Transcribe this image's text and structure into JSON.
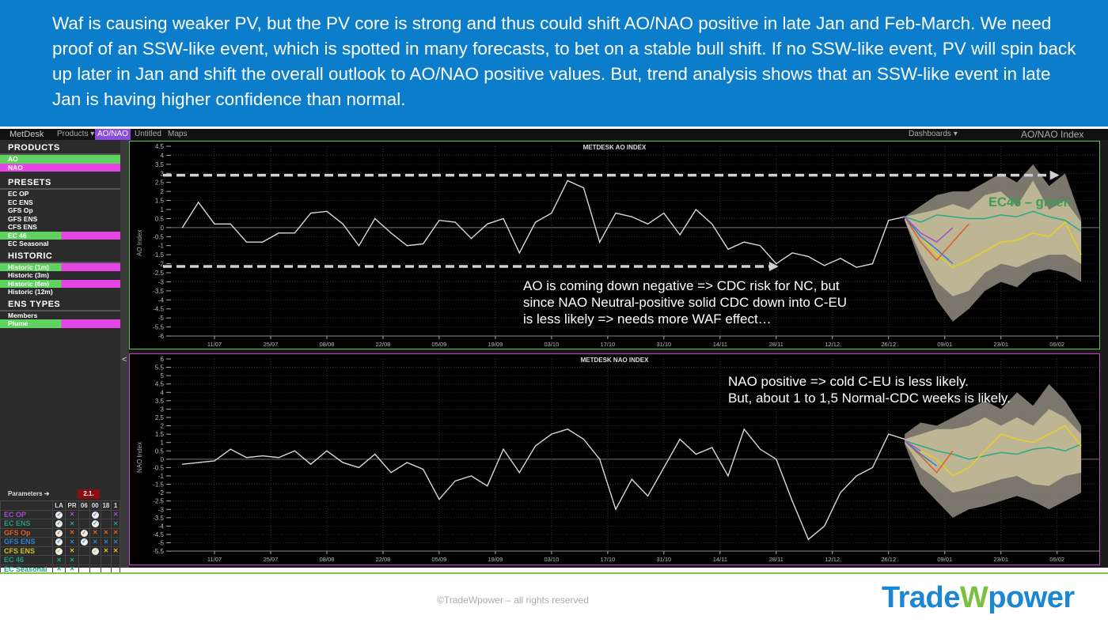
{
  "banner": {
    "text": "Waf is causing weaker PV, but the PV core is strong and thus could shift AO/NAO positive in late Jan and Feb-March. We need proof of an SSW-like event, which is spotted in many forecasts, to bet on a stable bull shift. If no SSW-like event, PV will spin back up later in Jan and shift the overall outlook to AO/NAO positive values. But, trend analysis shows that an SSW-like event in late Jan is having higher confidence than normal."
  },
  "toolbar": {
    "brand": "MetDesk",
    "products": "Products ▾",
    "active_tab": "AO/NAO",
    "untitled": "Untitled",
    "maps": "Maps",
    "dashboards": "Dashboards ▾",
    "index_title": "AO/NAO Index"
  },
  "sidebar": {
    "products_title": "PRODUCTS",
    "products": [
      {
        "label": "AO",
        "color": "#5fd35f"
      },
      {
        "label": "NAO",
        "color": "#e645e6"
      }
    ],
    "presets_title": "PRESETS",
    "presets": [
      {
        "label": "EC OP",
        "selected": false
      },
      {
        "label": "EC ENS",
        "selected": false
      },
      {
        "label": "GFS Op",
        "selected": false
      },
      {
        "label": "GFS ENS",
        "selected": false
      },
      {
        "label": "CFS ENS",
        "selected": false
      },
      {
        "label": "EC 46",
        "selected": true
      },
      {
        "label": "EC Seasonal",
        "selected": false
      }
    ],
    "historic_title": "HISTORIC",
    "historic": [
      {
        "label": "Historic (1m)",
        "selected": true
      },
      {
        "label": "Historic (3m)",
        "selected": false
      },
      {
        "label": "Historic (6m)",
        "selected": true
      },
      {
        "label": "Historic (12m)",
        "selected": false
      }
    ],
    "ens_title": "ENS TYPES",
    "ens_types": [
      {
        "label": "Members",
        "selected": false
      },
      {
        "label": "Plume",
        "selected": true
      }
    ],
    "collapse": "<"
  },
  "parameters": {
    "label": "Parameters ➔",
    "run": "2.1.",
    "columns": [
      "LA",
      "PR",
      "06",
      "00",
      "18",
      "1"
    ],
    "rows": [
      {
        "name": "EC OP",
        "color": "#a050d0",
        "marks": [
          "✓",
          "✕",
          "",
          "✓",
          "",
          "✕"
        ]
      },
      {
        "name": "EC ENS",
        "color": "#20a080",
        "marks": [
          "✓",
          "✕",
          "",
          "✓",
          "",
          "✕"
        ]
      },
      {
        "name": "GFS Op",
        "color": "#e06020",
        "marks": [
          "✓",
          "✕",
          "✓",
          "✕",
          "✕",
          "✕"
        ]
      },
      {
        "name": "GFS ENS",
        "color": "#3080d0",
        "marks": [
          "✓",
          "✕",
          "✓",
          "✕",
          "✕",
          "✕"
        ]
      },
      {
        "name": "CFS ENS",
        "color": "#d0c020",
        "marks": [
          "✓",
          "✕",
          "",
          "✓",
          "✕",
          "✕"
        ]
      },
      {
        "name": "EC 46",
        "color": "#20a080",
        "marks": [
          "✕",
          "✕",
          "",
          "",
          "",
          ""
        ]
      },
      {
        "name": "EC Seasonal",
        "color": "#20a080",
        "marks": [
          "✕",
          "✕",
          "",
          "",
          "",
          ""
        ]
      }
    ]
  },
  "chart_data": [
    {
      "type": "line",
      "title": "METDESK AO INDEX",
      "ylabel": "AO Index",
      "ylim": [
        -6,
        4.5
      ],
      "ytick_step": 0.5,
      "xticks": [
        "11/07",
        "25/07",
        "08/08",
        "22/08",
        "05/09",
        "19/09",
        "03/10",
        "17/10",
        "31/10",
        "14/11",
        "28/11",
        "12/12",
        "26/12",
        "09/01",
        "23/01",
        "06/02"
      ],
      "grid": true,
      "observed": {
        "x": [
          "03/07",
          "07/07",
          "11/07",
          "15/07",
          "19/07",
          "23/07",
          "27/07",
          "31/07",
          "04/08",
          "08/08",
          "12/08",
          "16/08",
          "20/08",
          "24/08",
          "28/08",
          "01/09",
          "05/09",
          "09/09",
          "13/09",
          "17/09",
          "21/09",
          "25/09",
          "29/09",
          "03/10",
          "07/10",
          "11/10",
          "15/10",
          "19/10",
          "23/10",
          "27/10",
          "31/10",
          "04/11",
          "08/11",
          "12/11",
          "16/11",
          "20/11",
          "24/11",
          "28/11",
          "02/12",
          "06/12",
          "10/12",
          "14/12",
          "18/12",
          "22/12",
          "26/12",
          "30/12"
        ],
        "y": [
          0,
          1.4,
          0.2,
          0.2,
          -0.8,
          -0.8,
          -0.3,
          -0.3,
          0.8,
          0.9,
          0.2,
          -1.0,
          0.5,
          -0.3,
          -1.0,
          -0.9,
          0.4,
          0.3,
          -0.6,
          0.2,
          0.5,
          -1.4,
          0.3,
          0.8,
          2.6,
          2.2,
          -0.8,
          0.8,
          0.6,
          0.2,
          0.8,
          -0.4,
          1.0,
          0.2,
          -1.2,
          -0.8,
          -1.0,
          -2.0,
          -1.4,
          -1.6,
          -2.1,
          -1.7,
          -2.2,
          -2.0,
          0.4,
          0.6
        ]
      },
      "forecast_x": [
        "30/12",
        "03/01",
        "07/01",
        "11/01",
        "15/01",
        "19/01",
        "23/01",
        "27/01",
        "31/01",
        "04/02",
        "08/02",
        "12/02"
      ],
      "bands": [
        {
          "color": "#8a8478",
          "upper": [
            0.6,
            1.2,
            1.8,
            2.0,
            2.0,
            2.5,
            3.0,
            2.5,
            3.5,
            2.3,
            3.0,
            0.5
          ],
          "lower": [
            0.4,
            -2.0,
            -4.0,
            -5.2,
            -4.5,
            -3.5,
            -3.0,
            -3.3,
            -2.5,
            -2.3,
            -2.5,
            -3.0
          ]
        },
        {
          "color": "#c9c09a",
          "upper": [
            0.6,
            0.8,
            1.0,
            1.3,
            1.0,
            1.8,
            2.0,
            1.2,
            2.6,
            1.0,
            1.5,
            0.3
          ],
          "lower": [
            0.4,
            -1.5,
            -3.0,
            -3.8,
            -3.5,
            -2.5,
            -2.0,
            -2.2,
            -1.8,
            -1.5,
            -1.5,
            -2.0
          ]
        }
      ],
      "series": [
        {
          "name": "EC46",
          "color": "#2aa88a",
          "y": [
            0.6,
            0.3,
            0.7,
            0.6,
            0.5,
            0.5,
            0.7,
            0.6,
            0.9,
            0.6,
            0.4,
            -0.2
          ]
        },
        {
          "color": "#e6d020",
          "y": [
            0.6,
            -0.5,
            -1.5,
            -2.2,
            -1.8,
            -1.3,
            -0.8,
            -0.7,
            -0.3,
            -0.5,
            0.3,
            -1.5
          ]
        },
        {
          "color": "#e06020",
          "y": [
            0.6,
            -0.8,
            -1.8,
            -0.8,
            0.2
          ]
        },
        {
          "color": "#3080d0",
          "y": [
            0.6,
            -0.5,
            -1.2,
            -2.0
          ]
        },
        {
          "color": "#a050d0",
          "y": [
            0.6,
            -0.3,
            -0.8,
            0.0
          ]
        }
      ],
      "dashed_arrows": [
        {
          "y": 2.9,
          "to": "06/02"
        },
        {
          "y": -2.15,
          "to": "28/11"
        }
      ],
      "annotations": [
        "AO is coming down negative => CDC risk for NC, but",
        "since NAO Neutral-positive solid CDC down into C-EU",
        "is less likely => needs more WAF effect…"
      ],
      "series_label": "EC46 – green"
    },
    {
      "type": "line",
      "title": "METDESK NAO INDEX",
      "ylabel": "NAO Index",
      "ylim": [
        -5.5,
        6
      ],
      "ytick_step": 0.5,
      "xticks": [
        "11/07",
        "25/07",
        "08/08",
        "22/08",
        "05/09",
        "19/09",
        "03/10",
        "17/10",
        "31/10",
        "14/11",
        "28/11",
        "12/12",
        "26/12",
        "09/01",
        "23/01",
        "06/02"
      ],
      "grid": true,
      "observed": {
        "x": [
          "03/07",
          "07/07",
          "11/07",
          "15/07",
          "19/07",
          "23/07",
          "27/07",
          "31/07",
          "04/08",
          "08/08",
          "12/08",
          "16/08",
          "20/08",
          "24/08",
          "28/08",
          "01/09",
          "05/09",
          "09/09",
          "13/09",
          "17/09",
          "21/09",
          "25/09",
          "29/09",
          "03/10",
          "07/10",
          "11/10",
          "15/10",
          "19/10",
          "23/10",
          "27/10",
          "31/10",
          "04/11",
          "08/11",
          "12/11",
          "16/11",
          "20/11",
          "24/11",
          "28/11",
          "02/12",
          "06/12",
          "10/12",
          "14/12",
          "18/12",
          "22/12",
          "26/12",
          "30/12"
        ],
        "y": [
          -0.3,
          -0.2,
          -0.1,
          0.6,
          0.1,
          0.2,
          0.1,
          0.5,
          -0.3,
          0.5,
          -0.2,
          -0.5,
          0.3,
          -0.8,
          -0.2,
          -0.6,
          -2.4,
          -1.3,
          -1.0,
          -1.6,
          0.6,
          -0.8,
          0.8,
          1.5,
          1.8,
          1.2,
          0.0,
          -3.0,
          -1.2,
          -2.2,
          -0.5,
          1.2,
          0.3,
          0.7,
          -1.0,
          1.8,
          0.6,
          0.0,
          -2.5,
          -4.8,
          -4.0,
          -2.0,
          -1.0,
          -0.5,
          1.5,
          1.2
        ]
      },
      "forecast_x": [
        "30/12",
        "03/01",
        "07/01",
        "11/01",
        "15/01",
        "19/01",
        "23/01",
        "27/01",
        "31/01",
        "04/02",
        "08/02",
        "12/02"
      ],
      "bands": [
        {
          "color": "#8a8478",
          "upper": [
            1.5,
            2.2,
            2.0,
            2.5,
            3.0,
            3.5,
            3.0,
            4.0,
            3.2,
            4.5,
            3.5,
            2.0
          ],
          "lower": [
            0.9,
            -1.5,
            -2.5,
            -3.5,
            -3.0,
            -2.8,
            -2.5,
            -2.2,
            -2.5,
            -3.0,
            -2.5,
            -2.0
          ]
        },
        {
          "color": "#c9c09a",
          "upper": [
            1.2,
            1.5,
            1.8,
            1.8,
            2.0,
            2.5,
            2.0,
            2.5,
            2.0,
            3.0,
            2.5,
            1.5
          ],
          "lower": [
            1.0,
            -0.5,
            -1.2,
            -2.0,
            -1.8,
            -1.5,
            -1.2,
            -1.0,
            -1.5,
            -1.6,
            -1.0,
            -0.8
          ]
        }
      ],
      "series": [
        {
          "name": "EC46",
          "color": "#2aa88a",
          "y": [
            1.1,
            0.8,
            0.5,
            0.3,
            0.0,
            0.2,
            0.4,
            0.3,
            0.6,
            0.7,
            0.5,
            0.9
          ]
        },
        {
          "color": "#e6d020",
          "y": [
            1.1,
            0.5,
            0.0,
            -1.0,
            -0.5,
            0.5,
            1.5,
            1.2,
            1.0,
            1.5,
            2.0,
            0.8
          ]
        },
        {
          "color": "#e06020",
          "y": [
            1.1,
            0.2,
            -0.8,
            0.5
          ]
        },
        {
          "color": "#3080d0",
          "y": [
            1.1,
            0.3,
            -0.4
          ]
        },
        {
          "color": "#a050d0",
          "y": [
            1.1,
            0.5
          ]
        }
      ],
      "annotations": [
        "NAO positive => cold C-EU is less likely.",
        "But, about 1 to 1,5 Normal-CDC weeks is likely."
      ]
    }
  ],
  "footer": {
    "copyright": "©TradeWpower – all rights reserved",
    "logo_a": "Trade",
    "logo_w": "W",
    "logo_b": "power"
  }
}
